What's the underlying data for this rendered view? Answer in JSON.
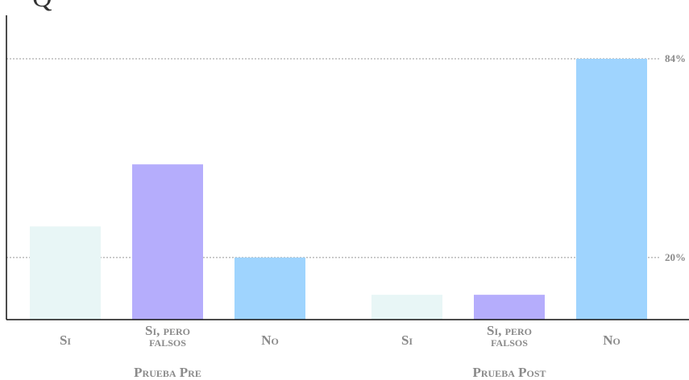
{
  "chart_data": {
    "type": "bar",
    "title": "Q",
    "categories": [
      "Prueba Pre",
      "Prueba Post"
    ],
    "series": [
      {
        "name": "Si",
        "color": "#e8f6f6",
        "values": [
          30,
          8
        ]
      },
      {
        "name": "Si, pero falsos",
        "color": "#b5adfc",
        "values": [
          50,
          8
        ]
      },
      {
        "name": "No",
        "color": "#9fd4fe",
        "values": [
          20,
          84
        ]
      }
    ],
    "ylim": [
      0,
      98
    ],
    "yticks": [
      {
        "value": 20,
        "label": "20%"
      },
      {
        "value": 84,
        "label": "84%"
      }
    ],
    "grid": true
  }
}
